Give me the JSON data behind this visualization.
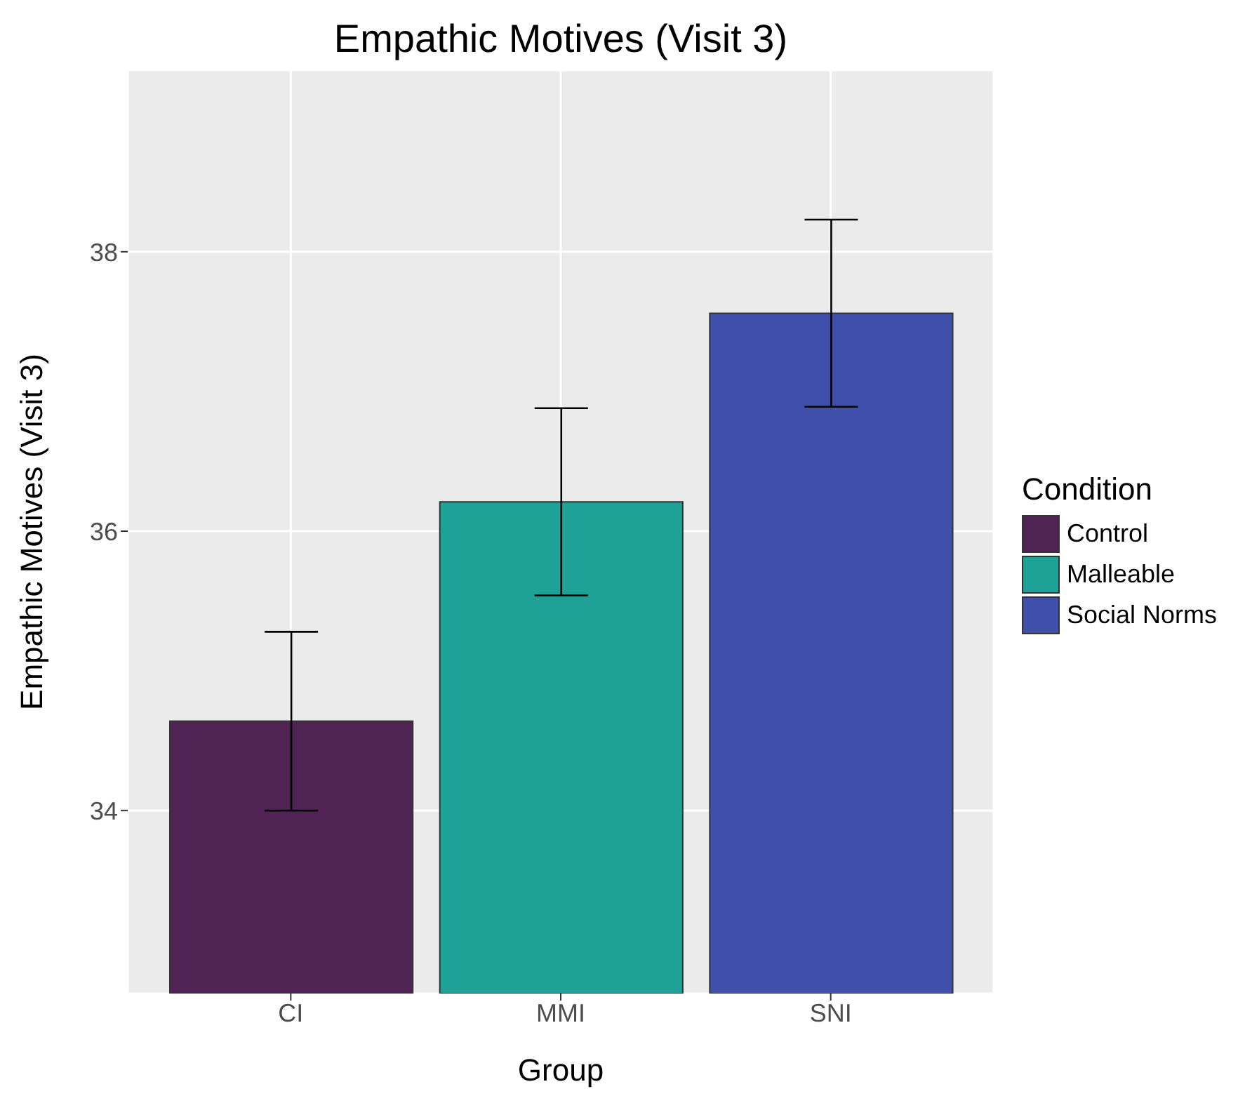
{
  "chart_data": {
    "type": "bar",
    "title": "Empathic Motives (Visit 3)",
    "xlabel": "Group",
    "ylabel": "Empathic Motives (Visit 3)",
    "legend_title": "Condition",
    "categories": [
      "CI",
      "MMI",
      "SNI"
    ],
    "series": [
      {
        "name": "Control",
        "color": "#4f2454",
        "values": [
          34.64,
          null,
          null
        ],
        "errors": [
          [
            34.0,
            35.28
          ],
          null,
          null
        ]
      },
      {
        "name": "Malleable",
        "color": "#1ea197",
        "values": [
          null,
          36.21,
          null
        ],
        "errors": [
          null,
          [
            35.54,
            36.88
          ],
          null
        ]
      },
      {
        "name": "Social Norms",
        "color": "#4050aa",
        "values": [
          null,
          null,
          37.56
        ],
        "errors": [
          null,
          null,
          [
            36.89,
            38.23
          ]
        ]
      }
    ],
    "ylim": [
      32.69,
      39.3
    ],
    "yticks": [
      34,
      36,
      38
    ],
    "grid": true,
    "legend": "right"
  }
}
